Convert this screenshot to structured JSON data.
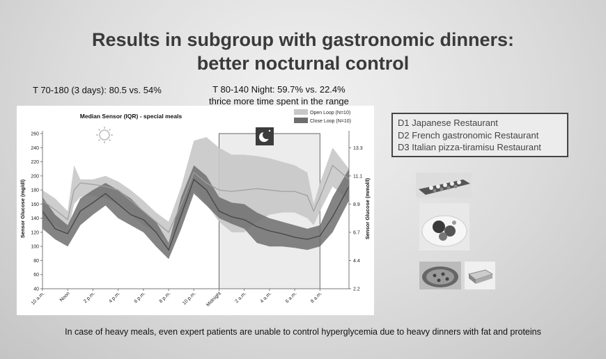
{
  "slide": {
    "title_line1": "Results in subgroup with gastronomic dinners:",
    "title_line2": "better nocturnal control",
    "stat_left": "T 70-180 (3 days): 80.5 vs. 54%",
    "stat_right_line1": "T 80-140 Night: 59.7% vs. 22.4%",
    "stat_right_line2": "thrice more time spent in the range",
    "restaurants": [
      "D1 Japanese Restaurant",
      "D2 French gastronomic Restaurant",
      "D3 Italian pizza-tiramisu Restaurant"
    ],
    "footer": "In case of heavy meals, even expert patients are unable  to control hyperglycemia  due to heavy dinners with fat and proteins"
  },
  "colors": {
    "open_loop_band": "#c8c8c8",
    "open_loop_line": "#a0a0a0",
    "close_loop_band": "#6e6e6e",
    "close_loop_line": "#444444",
    "night_box": "#ececec"
  },
  "chart_data": {
    "type": "area",
    "title": "Median Sensor (IQR) - special meals",
    "ylabel": "Sensor Glucose (mg/dl)",
    "ylabel_right": "Sensor Glucose (mmol/l)",
    "ylim": [
      40,
      260
    ],
    "y_ticks": [
      40,
      60,
      80,
      100,
      120,
      140,
      160,
      180,
      200,
      220,
      240,
      260
    ],
    "y_right_ticks": [
      {
        "label": "2.2",
        "mgdl": 40
      },
      {
        "label": "4.4",
        "mgdl": 80
      },
      {
        "label": "6.7",
        "mgdl": 120
      },
      {
        "label": "8.9",
        "mgdl": 160
      },
      {
        "label": "11.1",
        "mgdl": 200
      },
      {
        "label": "13.3",
        "mgdl": 240
      }
    ],
    "x_ticks": [
      "10 a.m.",
      "Noon",
      "2 p.m.",
      "4 p.m.",
      "6 p.m.",
      "8 p.m.",
      "10 p.m.",
      "Midnight",
      "2 a.m.",
      "4 a.m.",
      "6 a.m.",
      "8 a.m."
    ],
    "x_hours": [
      0,
      2,
      4,
      6,
      8,
      10,
      12,
      14,
      16,
      18,
      20,
      22
    ],
    "x_range": [
      0,
      24.3
    ],
    "night_window": [
      14,
      22
    ],
    "grid": false,
    "legend_position": "top-right",
    "series": [
      {
        "name": "Open Loop (N=10)",
        "x": [
          0,
          1,
          2,
          2.5,
          3,
          4,
          5,
          6,
          7,
          8,
          9,
          10,
          11,
          12,
          13,
          14,
          15,
          16,
          17,
          18,
          19,
          20,
          21,
          21.5,
          22,
          23,
          24.3
        ],
        "median": [
          165,
          152,
          138,
          180,
          190,
          188,
          185,
          180,
          165,
          150,
          135,
          120,
          160,
          205,
          190,
          180,
          178,
          180,
          182,
          180,
          178,
          178,
          172,
          150,
          170,
          215,
          195
        ],
        "q1": [
          140,
          130,
          120,
          160,
          170,
          172,
          168,
          160,
          145,
          130,
          120,
          105,
          140,
          180,
          160,
          135,
          120,
          120,
          135,
          145,
          148,
          148,
          140,
          130,
          150,
          185,
          165
        ],
        "q3": [
          180,
          168,
          150,
          215,
          195,
          195,
          200,
          192,
          180,
          165,
          148,
          135,
          185,
          250,
          255,
          240,
          230,
          230,
          228,
          225,
          220,
          215,
          205,
          160,
          190,
          240,
          210
        ]
      },
      {
        "name": "Close Loop (N=10)",
        "x": [
          0,
          1,
          2,
          3,
          4,
          5,
          6,
          7,
          8,
          9,
          10,
          11,
          12,
          13,
          14,
          15,
          16,
          17,
          18,
          19,
          20,
          21,
          22,
          23,
          24.3
        ],
        "median": [
          150,
          125,
          118,
          150,
          162,
          175,
          160,
          145,
          138,
          120,
          95,
          145,
          195,
          180,
          150,
          142,
          138,
          128,
          122,
          118,
          113,
          110,
          115,
          142,
          185
        ],
        "q1": [
          125,
          110,
          100,
          130,
          145,
          158,
          140,
          130,
          120,
          100,
          82,
          125,
          175,
          158,
          140,
          132,
          125,
          105,
          100,
          100,
          98,
          95,
          100,
          120,
          165
        ],
        "q3": [
          170,
          145,
          130,
          168,
          180,
          190,
          180,
          168,
          150,
          135,
          105,
          170,
          215,
          200,
          170,
          162,
          160,
          148,
          140,
          135,
          130,
          125,
          130,
          170,
          210
        ]
      }
    ]
  }
}
